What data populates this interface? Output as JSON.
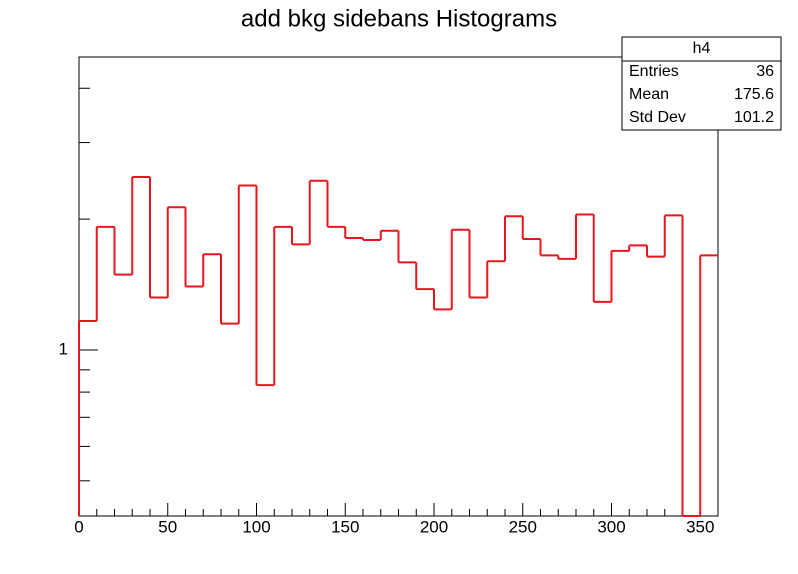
{
  "chart_data": {
    "type": "histogram",
    "title": "add bkg sidebans Histograms",
    "bins": [
      0,
      10,
      20,
      30,
      40,
      50,
      60,
      70,
      80,
      90,
      100,
      110,
      120,
      130,
      140,
      150,
      160,
      170,
      180,
      190,
      200,
      210,
      220,
      230,
      240,
      250,
      260,
      270,
      280,
      290,
      300,
      310,
      320,
      330,
      340,
      350,
      360
    ],
    "counts": [
      1.166,
      1.92,
      1.49,
      2.5,
      1.32,
      2.13,
      1.4,
      1.66,
      1.15,
      2.39,
      0.83,
      1.92,
      1.75,
      2.45,
      1.92,
      1.81,
      1.79,
      1.88,
      1.59,
      1.38,
      1.24,
      1.89,
      1.32,
      1.6,
      2.03,
      1.8,
      1.65,
      1.62,
      2.05,
      1.29,
      1.69,
      1.74,
      1.64,
      2.04,
      0,
      1.65
    ],
    "color": "#e8151b",
    "xlim": [
      0,
      360
    ],
    "xticks": [
      0,
      50,
      100,
      150,
      200,
      250,
      300,
      350
    ],
    "xminorticks": [
      10,
      20,
      30,
      40,
      60,
      70,
      80,
      90,
      110,
      120,
      130,
      140,
      160,
      170,
      180,
      190,
      210,
      220,
      230,
      240,
      260,
      270,
      280,
      290,
      310,
      320,
      330,
      340,
      360
    ],
    "ylim": [
      0.415,
      4.72
    ],
    "ylog": true,
    "yticks": [
      1
    ],
    "yminorticks": [
      0.5,
      0.6,
      0.7,
      0.8,
      0.9,
      2,
      3,
      4
    ],
    "stats": {
      "name": "h4",
      "rows": [
        [
          "Entries",
          "36"
        ],
        [
          "Mean",
          "175.6"
        ],
        [
          "Std Dev",
          "101.2"
        ]
      ]
    }
  }
}
